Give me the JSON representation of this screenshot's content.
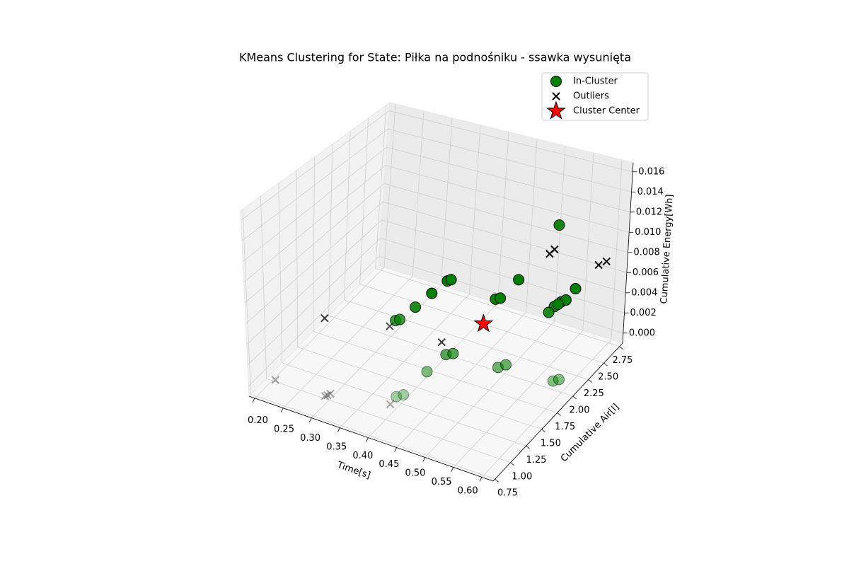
{
  "chart_data": {
    "type": "scatter3d",
    "title": "KMeans Clustering for State: Piłka na podnośniku - ssawka wysunięta",
    "xlabel": "Time[s]",
    "ylabel": "Cumulative Air[l]",
    "zlabel": "Cumulative Energy[Wh]",
    "xlim": [
      0.19,
      0.62
    ],
    "ylim": [
      0.72,
      2.8
    ],
    "zlim": [
      -0.001,
      0.0169
    ],
    "xticks": [
      {
        "value": 0.2,
        "label": "0.20"
      },
      0.25,
      {
        "value": 0.3,
        "label": "0.30"
      },
      0.35,
      {
        "value": 0.4,
        "label": "0.40"
      },
      0.45,
      {
        "value": 0.5,
        "label": "0.50"
      },
      0.55,
      {
        "value": 0.6,
        "label": "0.60"
      }
    ],
    "yticks": [
      0.75,
      {
        "value": 1.0,
        "label": "1.00"
      },
      1.25,
      {
        "value": 1.5,
        "label": "1.50"
      },
      1.75,
      {
        "value": 2.0,
        "label": "2.00"
      },
      2.25,
      {
        "value": 2.5,
        "label": "2.50"
      },
      2.75
    ],
    "zticks": [
      {
        "value": 0,
        "label": "0.000"
      },
      {
        "value": 0.002,
        "label": "0.002"
      },
      {
        "value": 0.004,
        "label": "0.004"
      },
      {
        "value": 0.006,
        "label": "0.006"
      },
      {
        "value": 0.008,
        "label": "0.008"
      },
      {
        "value": 0.01,
        "label": "0.010"
      },
      {
        "value": 0.012,
        "label": "0.012"
      },
      {
        "value": 0.014,
        "label": "0.014"
      },
      {
        "value": 0.016,
        "label": "0.016"
      }
    ],
    "grid": true,
    "legend": "upper right",
    "series": [
      {
        "name": "In-Cluster",
        "color": "#008000",
        "marker": "o",
        "x": [
          0.336,
          0.34,
          0.344,
          0.347,
          0.351,
          0.354,
          0.44,
          0.445,
          0.445,
          0.529,
          0.532,
          0.529,
          0.536,
          0.531,
          0.534,
          0.53,
          0.419,
          0.422,
          0.43,
          0.508,
          0.515,
          0.599,
          0.605,
          0.411,
          0.418
        ],
        "y": [
          1.73,
          1.76,
          1.97,
          2.2,
          2.41,
          2.44,
          2.37,
          2.4,
          2.69,
          2.5,
          2.58,
          2.41,
          2.62,
          2.54,
          2.79,
          2.5,
          1.485,
          1.76,
          1.8,
          1.81,
          1.87,
          1.86,
          1.9,
          1.07,
          1.12
        ],
        "z": [
          0.003,
          0.003,
          0.003,
          0.003,
          0.003,
          0.003,
          0.003,
          0.003,
          0.003,
          0.003,
          0.003,
          0.003,
          0.003,
          0.003,
          0.003,
          0.0112,
          0.001,
          0.001,
          0.001,
          0.001,
          0.001,
          0.001,
          0.001,
          0.001,
          0.001
        ]
      },
      {
        "name": "Outliers",
        "color": "#000000",
        "marker": "x",
        "x": [
          0.336,
          0.413,
          0.4,
          0.24,
          0.317,
          0.319,
          0.321,
          0.231,
          0.515,
          0.522,
          0.584,
          0.59
        ],
        "y": [
          1.64,
          0.957,
          1.89,
          1.48,
          0.79,
          0.81,
          0.84,
          0.78,
          2.51,
          2.52,
          2.67,
          2.74
        ],
        "z": [
          0.003,
          0.001,
          0.001,
          0.003,
          0.001,
          0.001,
          0.001,
          0.001,
          0.008,
          0.0085,
          0.007,
          0.007
        ]
      },
      {
        "name": "Cluster Center",
        "color": "#ff0000",
        "marker": "*",
        "x": [
          0.444
        ],
        "y": [
          2.15
        ],
        "z": [
          0.002
        ]
      }
    ]
  }
}
